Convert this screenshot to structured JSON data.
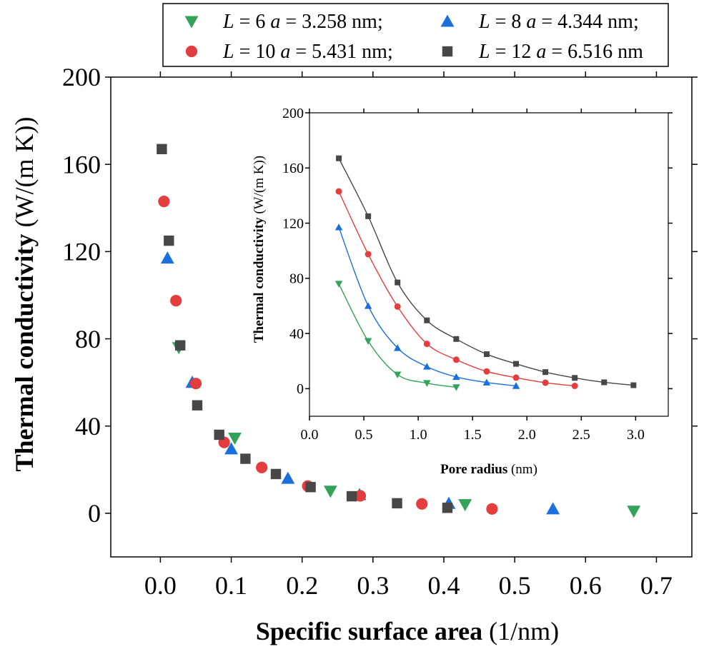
{
  "colors": {
    "L6": "#33a35a",
    "L8": "#1a6fdc",
    "L10": "#e43d3d",
    "L12": "#474747"
  },
  "legend": [
    {
      "key": "L6",
      "marker": "triangle-down",
      "L": "L",
      "eq1": " = 6 ",
      "a": "a",
      "eq2": " = 3.258 nm;"
    },
    {
      "key": "L8",
      "marker": "triangle-up",
      "L": "L",
      "eq1": " = 8 ",
      "a": "a",
      "eq2": " = 4.344 nm;"
    },
    {
      "key": "L10",
      "marker": "circle",
      "L": "L",
      "eq1": " = 10 ",
      "a": "a",
      "eq2": " = 5.431 nm;"
    },
    {
      "key": "L12",
      "marker": "square",
      "L": "L",
      "eq1": " = 12 ",
      "a": "a",
      "eq2": " = 6.516 nm"
    }
  ],
  "chart_data": [
    {
      "type": "scatter",
      "xlabel_bold": "Specific surface area",
      "xlabel_unit": " (1/nm)",
      "ylabel_bold": "Thermal conductivity",
      "ylabel_unit": " (W/(m K))",
      "xlim": [
        -0.07,
        0.75
      ],
      "ylim": [
        -20,
        200
      ],
      "xticks": [
        "0.0",
        "0.1",
        "0.2",
        "0.3",
        "0.4",
        "0.5",
        "0.6",
        "0.7"
      ],
      "xtick_values": [
        0,
        0.1,
        0.2,
        0.3,
        0.4,
        0.5,
        0.6,
        0.7
      ],
      "yticks": [
        "0",
        "40",
        "80",
        "120",
        "160",
        "200"
      ],
      "ytick_values": [
        0,
        40,
        80,
        120,
        160,
        200
      ],
      "series": [
        {
          "key": "L6",
          "x": [
            0.026,
            0.105,
            0.24,
            0.43,
            0.668
          ],
          "y": [
            76,
            34.5,
            10.2,
            4,
            1
          ]
        },
        {
          "key": "L8",
          "x": [
            0.01,
            0.045,
            0.1,
            0.18,
            0.281,
            0.407,
            0.554
          ],
          "y": [
            117,
            60,
            29.5,
            16,
            8.5,
            4.5,
            2
          ]
        },
        {
          "key": "L10",
          "x": [
            0.005,
            0.022,
            0.05,
            0.09,
            0.143,
            0.208,
            0.282,
            0.369,
            0.468
          ],
          "y": [
            143,
            97.5,
            59.5,
            32.5,
            21,
            12.5,
            8,
            4.3,
            2
          ]
        },
        {
          "key": "L12",
          "x": [
            0.002,
            0.012,
            0.028,
            0.052,
            0.083,
            0.12,
            0.163,
            0.212,
            0.27,
            0.334,
            0.405
          ],
          "y": [
            167,
            125,
            77,
            49.5,
            36,
            25,
            18,
            12,
            7.8,
            4.6,
            2.5
          ]
        }
      ]
    },
    {
      "type": "line",
      "xlabel_bold": "Pore radius",
      "xlabel_unit": " (nm)",
      "ylabel_bold": "Thermal conductivity",
      "ylabel_unit": " (W/(m K))",
      "xlim": [
        0.0,
        3.3
      ],
      "ylim": [
        -20,
        200
      ],
      "xticks": [
        "0.0",
        "0.5",
        "1.0",
        "1.5",
        "2.0",
        "2.5",
        "3.0"
      ],
      "xtick_values": [
        0,
        0.5,
        1.0,
        1.5,
        2.0,
        2.5,
        3.0
      ],
      "yticks": [
        "0",
        "40",
        "80",
        "120",
        "160",
        "200"
      ],
      "ytick_values": [
        0,
        40,
        80,
        120,
        160,
        200
      ],
      "series": [
        {
          "key": "L6",
          "x": [
            0.27,
            0.54,
            0.81,
            1.08,
            1.35
          ],
          "y": [
            76,
            34.5,
            10.2,
            4,
            1
          ]
        },
        {
          "key": "L8",
          "x": [
            0.27,
            0.54,
            0.81,
            1.08,
            1.35,
            1.63,
            1.9
          ],
          "y": [
            117,
            60,
            29.5,
            16,
            8.5,
            4.5,
            2
          ]
        },
        {
          "key": "L10",
          "x": [
            0.27,
            0.54,
            0.81,
            1.08,
            1.35,
            1.63,
            1.9,
            2.17,
            2.44
          ],
          "y": [
            143,
            97.5,
            59.5,
            32.5,
            21,
            12.5,
            8,
            4.3,
            2
          ]
        },
        {
          "key": "L12",
          "x": [
            0.27,
            0.54,
            0.81,
            1.08,
            1.35,
            1.63,
            1.9,
            2.17,
            2.44,
            2.71,
            2.98
          ],
          "y": [
            167,
            125,
            77,
            49.5,
            36,
            25,
            18,
            12,
            7.8,
            4.6,
            2.5
          ]
        }
      ]
    }
  ]
}
